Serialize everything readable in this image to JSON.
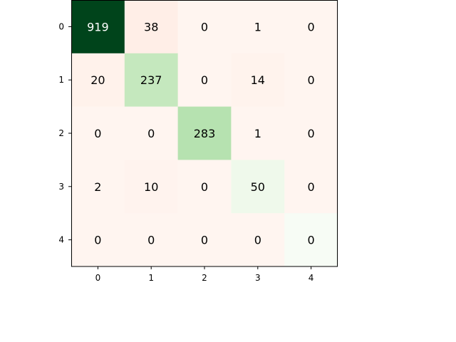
{
  "chart_data": {
    "type": "heatmap",
    "title": "",
    "xlabel": "",
    "ylabel": "",
    "x_tick_labels": [
      "0",
      "1",
      "2",
      "3",
      "4"
    ],
    "y_tick_labels": [
      "0",
      "1",
      "2",
      "3",
      "4"
    ],
    "matrix": [
      [
        919,
        38,
        0,
        1,
        0
      ],
      [
        20,
        237,
        0,
        14,
        0
      ],
      [
        0,
        0,
        283,
        1,
        0
      ],
      [
        2,
        10,
        0,
        50,
        0
      ],
      [
        0,
        0,
        0,
        0,
        0
      ]
    ],
    "colormap": {
      "diagonal": "Greens",
      "off_diagonal": "Reds"
    },
    "cell_text_colors": {
      "dark": "#ffffff",
      "light": "#000000"
    },
    "grid": false,
    "legend": "none"
  }
}
